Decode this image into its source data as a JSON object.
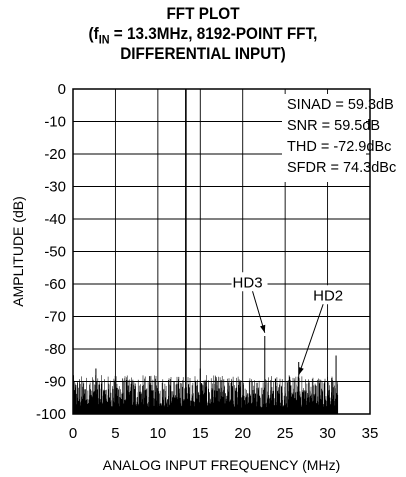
{
  "chart_data": {
    "type": "line",
    "title_line1": "FFT PLOT",
    "title_line2_prefix": "(f",
    "title_line2_sub": "IN",
    "title_line2_rest": " = 13.3MHz, 8192-POINT FFT,",
    "title_line3": "DIFFERENTIAL INPUT)",
    "xlabel": "ANALOG INPUT FREQUENCY (MHz)",
    "ylabel": "AMPLITUDE (dB)",
    "xlim": [
      0,
      35
    ],
    "ylim": [
      -100,
      0
    ],
    "x_ticks": [
      "0",
      "5",
      "10",
      "15",
      "20",
      "25",
      "30",
      "35"
    ],
    "y_ticks": [
      "0",
      "-10",
      "-20",
      "-30",
      "-40",
      "-50",
      "-60",
      "-70",
      "-80",
      "-90",
      "-100"
    ],
    "grid": true,
    "stats": [
      "SINAD = 59.3dB",
      "SNR = 59.5dB",
      "THD = -72.9dBc",
      "SFDR = 74.3dBc"
    ],
    "noise_floor_db": [
      -100,
      -88
    ],
    "spurs": [
      {
        "x": 13.3,
        "y": 0,
        "label": "fundamental"
      },
      {
        "x": 22.6,
        "y": -76
      },
      {
        "x": 26.6,
        "y": -84
      },
      {
        "x": 31.0,
        "y": -82
      },
      {
        "x": 2.7,
        "y": -86
      },
      {
        "x": 15.0,
        "y": -86
      }
    ],
    "annotations": [
      {
        "label": "HD3",
        "text_x": 18.8,
        "text_y": -61,
        "target_x": 22.6,
        "target_y": -75
      },
      {
        "label": "HD2",
        "text_x": 28.3,
        "text_y": -65,
        "target_x": 26.6,
        "target_y": -88
      }
    ]
  }
}
